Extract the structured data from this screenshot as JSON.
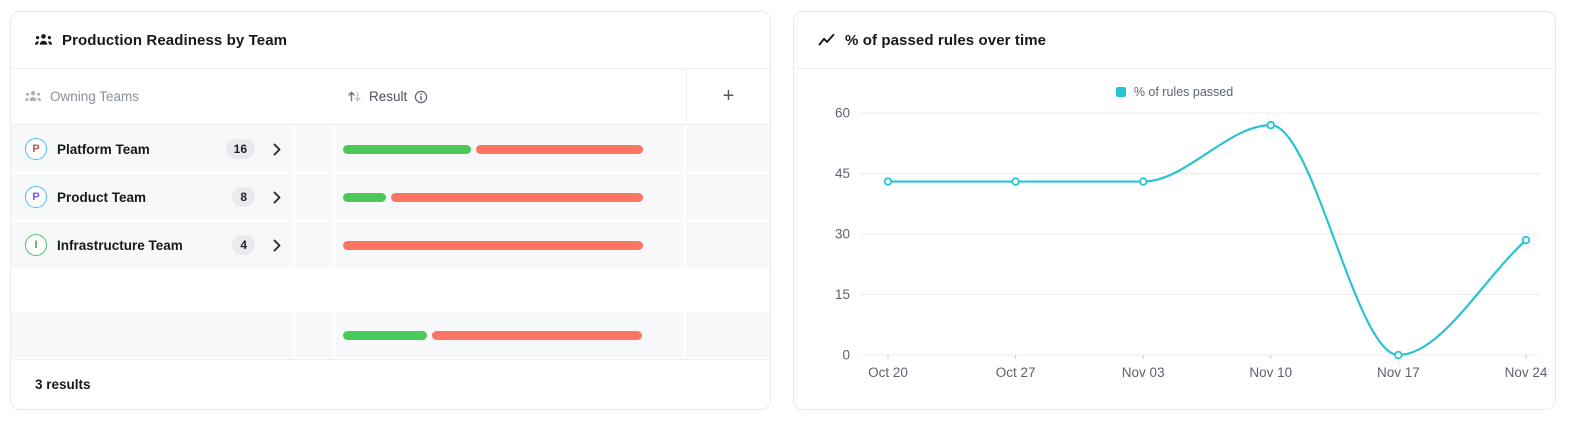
{
  "left_panel": {
    "title": "Production Readiness by Team",
    "title_icon": "team-icon",
    "columns": {
      "owning_teams": "Owning Teams",
      "result": "Result",
      "add": "+"
    },
    "rows": [
      {
        "team": "Platform Team",
        "initial": "P",
        "count": "16",
        "avatar_border": "#4ec0ee",
        "avatar_text": "#c0564e",
        "passed_pct": 42.5,
        "failed_pct": 55.5
      },
      {
        "team": "Product Team",
        "initial": "P",
        "count": "8",
        "avatar_border": "#4ec0ee",
        "avatar_text": "#7a57f0",
        "passed_pct": 14.3,
        "failed_pct": 84.0
      },
      {
        "team": "Infrastructure Team",
        "initial": "I",
        "count": "4",
        "avatar_border": "#52c06a",
        "avatar_text": "#3fae52",
        "passed_pct": 0,
        "failed_pct": 100
      }
    ],
    "summary": {
      "passed_pct": 28,
      "failed_pct": 70
    },
    "footer": "3 results",
    "colors": {
      "passed": "#4bc959",
      "failed": "#fb7662",
      "row_bg": "#f7f8f9"
    },
    "icons": {
      "header_people": "team-icon",
      "sort": "sort-arrows-icon",
      "info": "info-icon",
      "add": "plus-icon",
      "row": "chevron-right-icon"
    }
  },
  "right_panel": {
    "title": "% of passed rules over time",
    "title_icon": "trend-line-icon",
    "legend": "% of rules passed"
  },
  "chart_data": {
    "type": "line",
    "title": "% of passed rules over time",
    "x": [
      "Oct 20",
      "Oct 27",
      "Nov 03",
      "Nov 10",
      "Nov 17",
      "Nov 24"
    ],
    "series": [
      {
        "name": "% of rules passed",
        "values": [
          43,
          43,
          43,
          57,
          0,
          28.5
        ],
        "color": "#29c3d2"
      }
    ],
    "xlabel": "",
    "ylabel": "",
    "ylim": [
      0,
      60
    ],
    "yticks": [
      0,
      15,
      30,
      45,
      60
    ],
    "grid": "horizontal",
    "legend_position": "top-center",
    "gridline_color": "#ececee",
    "axis_label_color": "#5d636d"
  }
}
